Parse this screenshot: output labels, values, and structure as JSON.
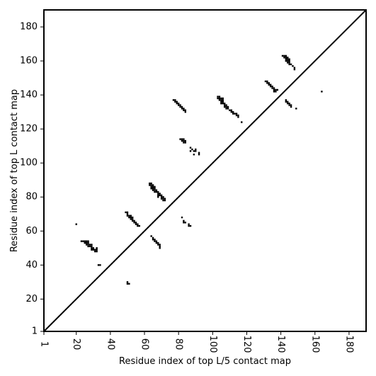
{
  "chart_data": {
    "type": "scatter",
    "title": "",
    "xlabel": "Residue index of top L/5 contact map",
    "ylabel": "Residue index of top L contact map",
    "xlim": [
      1,
      190
    ],
    "ylim": [
      1,
      190
    ],
    "x_ticks": [
      1,
      20,
      40,
      60,
      80,
      100,
      120,
      140,
      160,
      180
    ],
    "y_ticks": [
      1,
      20,
      40,
      60,
      80,
      100,
      120,
      140,
      160,
      180
    ],
    "x_tick_labels": [
      "1",
      "20",
      "40",
      "60",
      "80",
      "100",
      "120",
      "140",
      "160",
      "180"
    ],
    "y_tick_labels": [
      "1",
      "20",
      "40",
      "60",
      "80",
      "100",
      "120",
      "140",
      "160",
      "180"
    ],
    "diagonal": [
      [
        1,
        1
      ],
      [
        190,
        190
      ]
    ],
    "series": [
      {
        "marker": "square",
        "color": "#000000",
        "points": [
          [
            20,
            64
          ],
          [
            23,
            54
          ],
          [
            24,
            54
          ],
          [
            25,
            54
          ],
          [
            26,
            54
          ],
          [
            27,
            54
          ],
          [
            25,
            53
          ],
          [
            26,
            53
          ],
          [
            27,
            53
          ],
          [
            26,
            52
          ],
          [
            27,
            52
          ],
          [
            28,
            52
          ],
          [
            29,
            52
          ],
          [
            27,
            51
          ],
          [
            28,
            51
          ],
          [
            29,
            51
          ],
          [
            29,
            50
          ],
          [
            30,
            50
          ],
          [
            32,
            50
          ],
          [
            29,
            49
          ],
          [
            30,
            49
          ],
          [
            31,
            49
          ],
          [
            32,
            49
          ],
          [
            31,
            48
          ],
          [
            32,
            48
          ],
          [
            33,
            40
          ],
          [
            34,
            40
          ],
          [
            50,
            30
          ],
          [
            50,
            29
          ],
          [
            51,
            29
          ],
          [
            49,
            71
          ],
          [
            50,
            71
          ],
          [
            50,
            70
          ],
          [
            50,
            69
          ],
          [
            51,
            69
          ],
          [
            52,
            69
          ],
          [
            51,
            68
          ],
          [
            52,
            68
          ],
          [
            53,
            68
          ],
          [
            52,
            67
          ],
          [
            53,
            67
          ],
          [
            53,
            66
          ],
          [
            54,
            66
          ],
          [
            54,
            65
          ],
          [
            55,
            65
          ],
          [
            55,
            64
          ],
          [
            56,
            64
          ],
          [
            56,
            63
          ],
          [
            57,
            63
          ],
          [
            63,
            88
          ],
          [
            64,
            88
          ],
          [
            63,
            87
          ],
          [
            64,
            87
          ],
          [
            65,
            87
          ],
          [
            64,
            86
          ],
          [
            65,
            86
          ],
          [
            66,
            86
          ],
          [
            64,
            85
          ],
          [
            65,
            85
          ],
          [
            66,
            85
          ],
          [
            65,
            84
          ],
          [
            66,
            84
          ],
          [
            67,
            84
          ],
          [
            66,
            83
          ],
          [
            67,
            83
          ],
          [
            68,
            83
          ],
          [
            68,
            82
          ],
          [
            69,
            82
          ],
          [
            68,
            81
          ],
          [
            69,
            81
          ],
          [
            70,
            81
          ],
          [
            68,
            80
          ],
          [
            70,
            80
          ],
          [
            71,
            80
          ],
          [
            70,
            79
          ],
          [
            71,
            79
          ],
          [
            72,
            79
          ],
          [
            71,
            78
          ],
          [
            72,
            78
          ],
          [
            64,
            57
          ],
          [
            65,
            56
          ],
          [
            65,
            55
          ],
          [
            66,
            55
          ],
          [
            66,
            54
          ],
          [
            67,
            54
          ],
          [
            67,
            53
          ],
          [
            68,
            53
          ],
          [
            68,
            52
          ],
          [
            69,
            52
          ],
          [
            69,
            51
          ],
          [
            69,
            50
          ],
          [
            82,
            68
          ],
          [
            83,
            66
          ],
          [
            83,
            65
          ],
          [
            84,
            65
          ],
          [
            86,
            64
          ],
          [
            86,
            63
          ],
          [
            87,
            63
          ],
          [
            77,
            137
          ],
          [
            78,
            137
          ],
          [
            78,
            136
          ],
          [
            79,
            136
          ],
          [
            79,
            135
          ],
          [
            80,
            135
          ],
          [
            80,
            134
          ],
          [
            81,
            134
          ],
          [
            81,
            133
          ],
          [
            82,
            133
          ],
          [
            82,
            132
          ],
          [
            83,
            132
          ],
          [
            83,
            131
          ],
          [
            84,
            131
          ],
          [
            84,
            130
          ],
          [
            81,
            114
          ],
          [
            82,
            114
          ],
          [
            83,
            114
          ],
          [
            82,
            113
          ],
          [
            83,
            113
          ],
          [
            84,
            113
          ],
          [
            83,
            112
          ],
          [
            84,
            112
          ],
          [
            87,
            109
          ],
          [
            88,
            108
          ],
          [
            90,
            108
          ],
          [
            87,
            107
          ],
          [
            89,
            107
          ],
          [
            90,
            107
          ],
          [
            92,
            106
          ],
          [
            89,
            105
          ],
          [
            92,
            105
          ],
          [
            103,
            139
          ],
          [
            104,
            139
          ],
          [
            103,
            138
          ],
          [
            104,
            138
          ],
          [
            105,
            138
          ],
          [
            106,
            138
          ],
          [
            104,
            137
          ],
          [
            105,
            137
          ],
          [
            106,
            137
          ],
          [
            105,
            136
          ],
          [
            106,
            136
          ],
          [
            105,
            135
          ],
          [
            106,
            135
          ],
          [
            107,
            135
          ],
          [
            107,
            134
          ],
          [
            108,
            134
          ],
          [
            107,
            133
          ],
          [
            108,
            133
          ],
          [
            109,
            133
          ],
          [
            108,
            132
          ],
          [
            109,
            132
          ],
          [
            110,
            131
          ],
          [
            111,
            131
          ],
          [
            111,
            130
          ],
          [
            112,
            130
          ],
          [
            112,
            129
          ],
          [
            113,
            129
          ],
          [
            114,
            129
          ],
          [
            114,
            128
          ],
          [
            115,
            128
          ],
          [
            115,
            127
          ],
          [
            117,
            124
          ],
          [
            131,
            148
          ],
          [
            132,
            148
          ],
          [
            132,
            147
          ],
          [
            133,
            147
          ],
          [
            133,
            146
          ],
          [
            134,
            146
          ],
          [
            134,
            145
          ],
          [
            135,
            145
          ],
          [
            135,
            144
          ],
          [
            136,
            144
          ],
          [
            136,
            143
          ],
          [
            137,
            143
          ],
          [
            138,
            143
          ],
          [
            136,
            142
          ],
          [
            137,
            142
          ],
          [
            141,
            163
          ],
          [
            142,
            163
          ],
          [
            143,
            163
          ],
          [
            142,
            162
          ],
          [
            143,
            162
          ],
          [
            144,
            162
          ],
          [
            143,
            161
          ],
          [
            144,
            161
          ],
          [
            145,
            161
          ],
          [
            143,
            160
          ],
          [
            144,
            160
          ],
          [
            145,
            160
          ],
          [
            144,
            159
          ],
          [
            145,
            159
          ],
          [
            145,
            158
          ],
          [
            146,
            158
          ],
          [
            147,
            157
          ],
          [
            148,
            156
          ],
          [
            148,
            155
          ],
          [
            143,
            137
          ],
          [
            143,
            136
          ],
          [
            144,
            136
          ],
          [
            144,
            135
          ],
          [
            145,
            135
          ],
          [
            145,
            134
          ],
          [
            146,
            134
          ],
          [
            146,
            133
          ],
          [
            149,
            132
          ],
          [
            164,
            142
          ]
        ]
      }
    ]
  }
}
